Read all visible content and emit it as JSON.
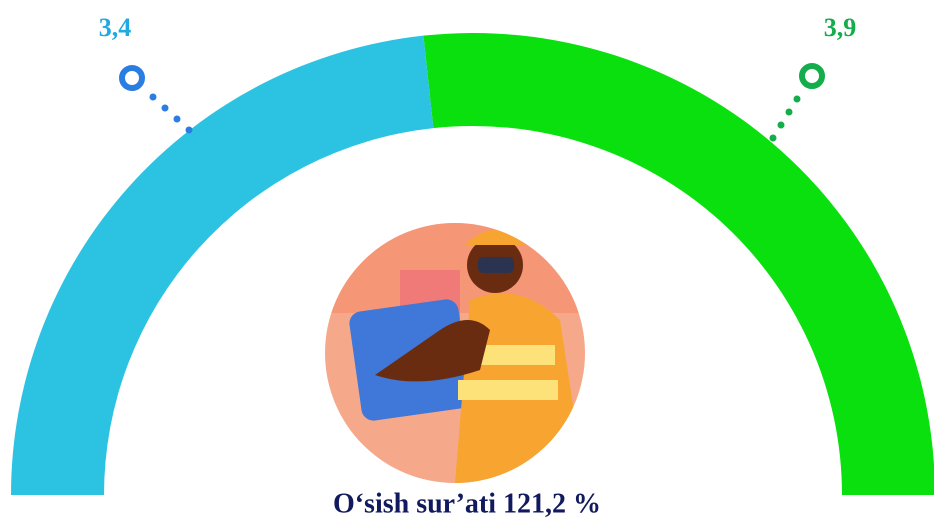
{
  "chart_data": {
    "type": "donut",
    "half": true,
    "values": [
      3.4,
      3.9
    ],
    "value_labels": [
      "3,4",
      "3,9"
    ],
    "colors": [
      "#2cc3e3",
      "#0ae00e"
    ],
    "label_colors": [
      "#21a9e1",
      "#13ad4b"
    ],
    "caption": "O‘sish sur’ati 121,2 %"
  }
}
